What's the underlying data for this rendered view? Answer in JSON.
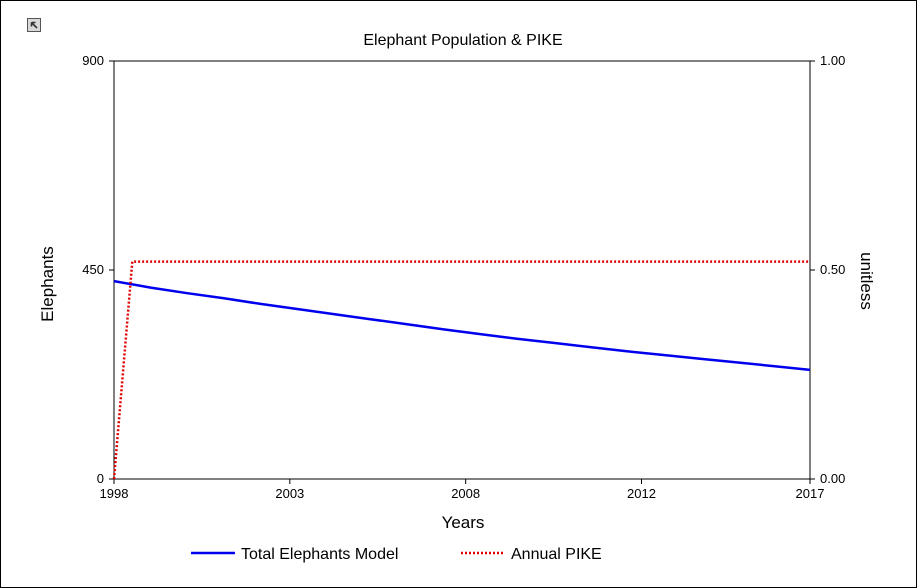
{
  "icons": {
    "expand": "expand-arrow-icon"
  },
  "chart_data": {
    "type": "line",
    "title": "Elephant Population & PIKE",
    "xlabel": "Years",
    "ylabel_left": "Elephants",
    "ylabel_right": "unitless",
    "xlim": [
      1998,
      2017
    ],
    "ylim_left": [
      0,
      900
    ],
    "ylim_right": [
      0,
      1
    ],
    "xticks": [
      "1998",
      "2003",
      "2008",
      "2012",
      "2017"
    ],
    "xtick_values": [
      1998,
      2002.8,
      2007.6,
      2012.4,
      2017
    ],
    "yticks_left": [
      "0",
      "450",
      "900"
    ],
    "yticks_right": [
      "0.00",
      "0.50",
      "1.00"
    ],
    "grid": false,
    "legend_position": "bottom",
    "series": [
      {
        "name": "Total Elephants Model",
        "axis": "left",
        "color": "#0000ee",
        "style": "solid",
        "x": [
          1998,
          1999,
          2000,
          2001,
          2002,
          2003,
          2004,
          2005,
          2006,
          2007,
          2008,
          2009,
          2010,
          2011,
          2012,
          2013,
          2014,
          2015,
          2016,
          2017
        ],
        "y": [
          426,
          412,
          400,
          389,
          377,
          366,
          355,
          344,
          333,
          322,
          312,
          302,
          293,
          284,
          275,
          267,
          259,
          251,
          243,
          235
        ]
      },
      {
        "name": "Annual PIKE",
        "axis": "right",
        "color": "#e00000",
        "style": "dotted",
        "x": [
          1998,
          1998.5,
          1999,
          2000,
          2005,
          2010,
          2015,
          2017
        ],
        "y": [
          0,
          0.52,
          0.52,
          0.52,
          0.52,
          0.52,
          0.52,
          0.52
        ]
      }
    ]
  }
}
